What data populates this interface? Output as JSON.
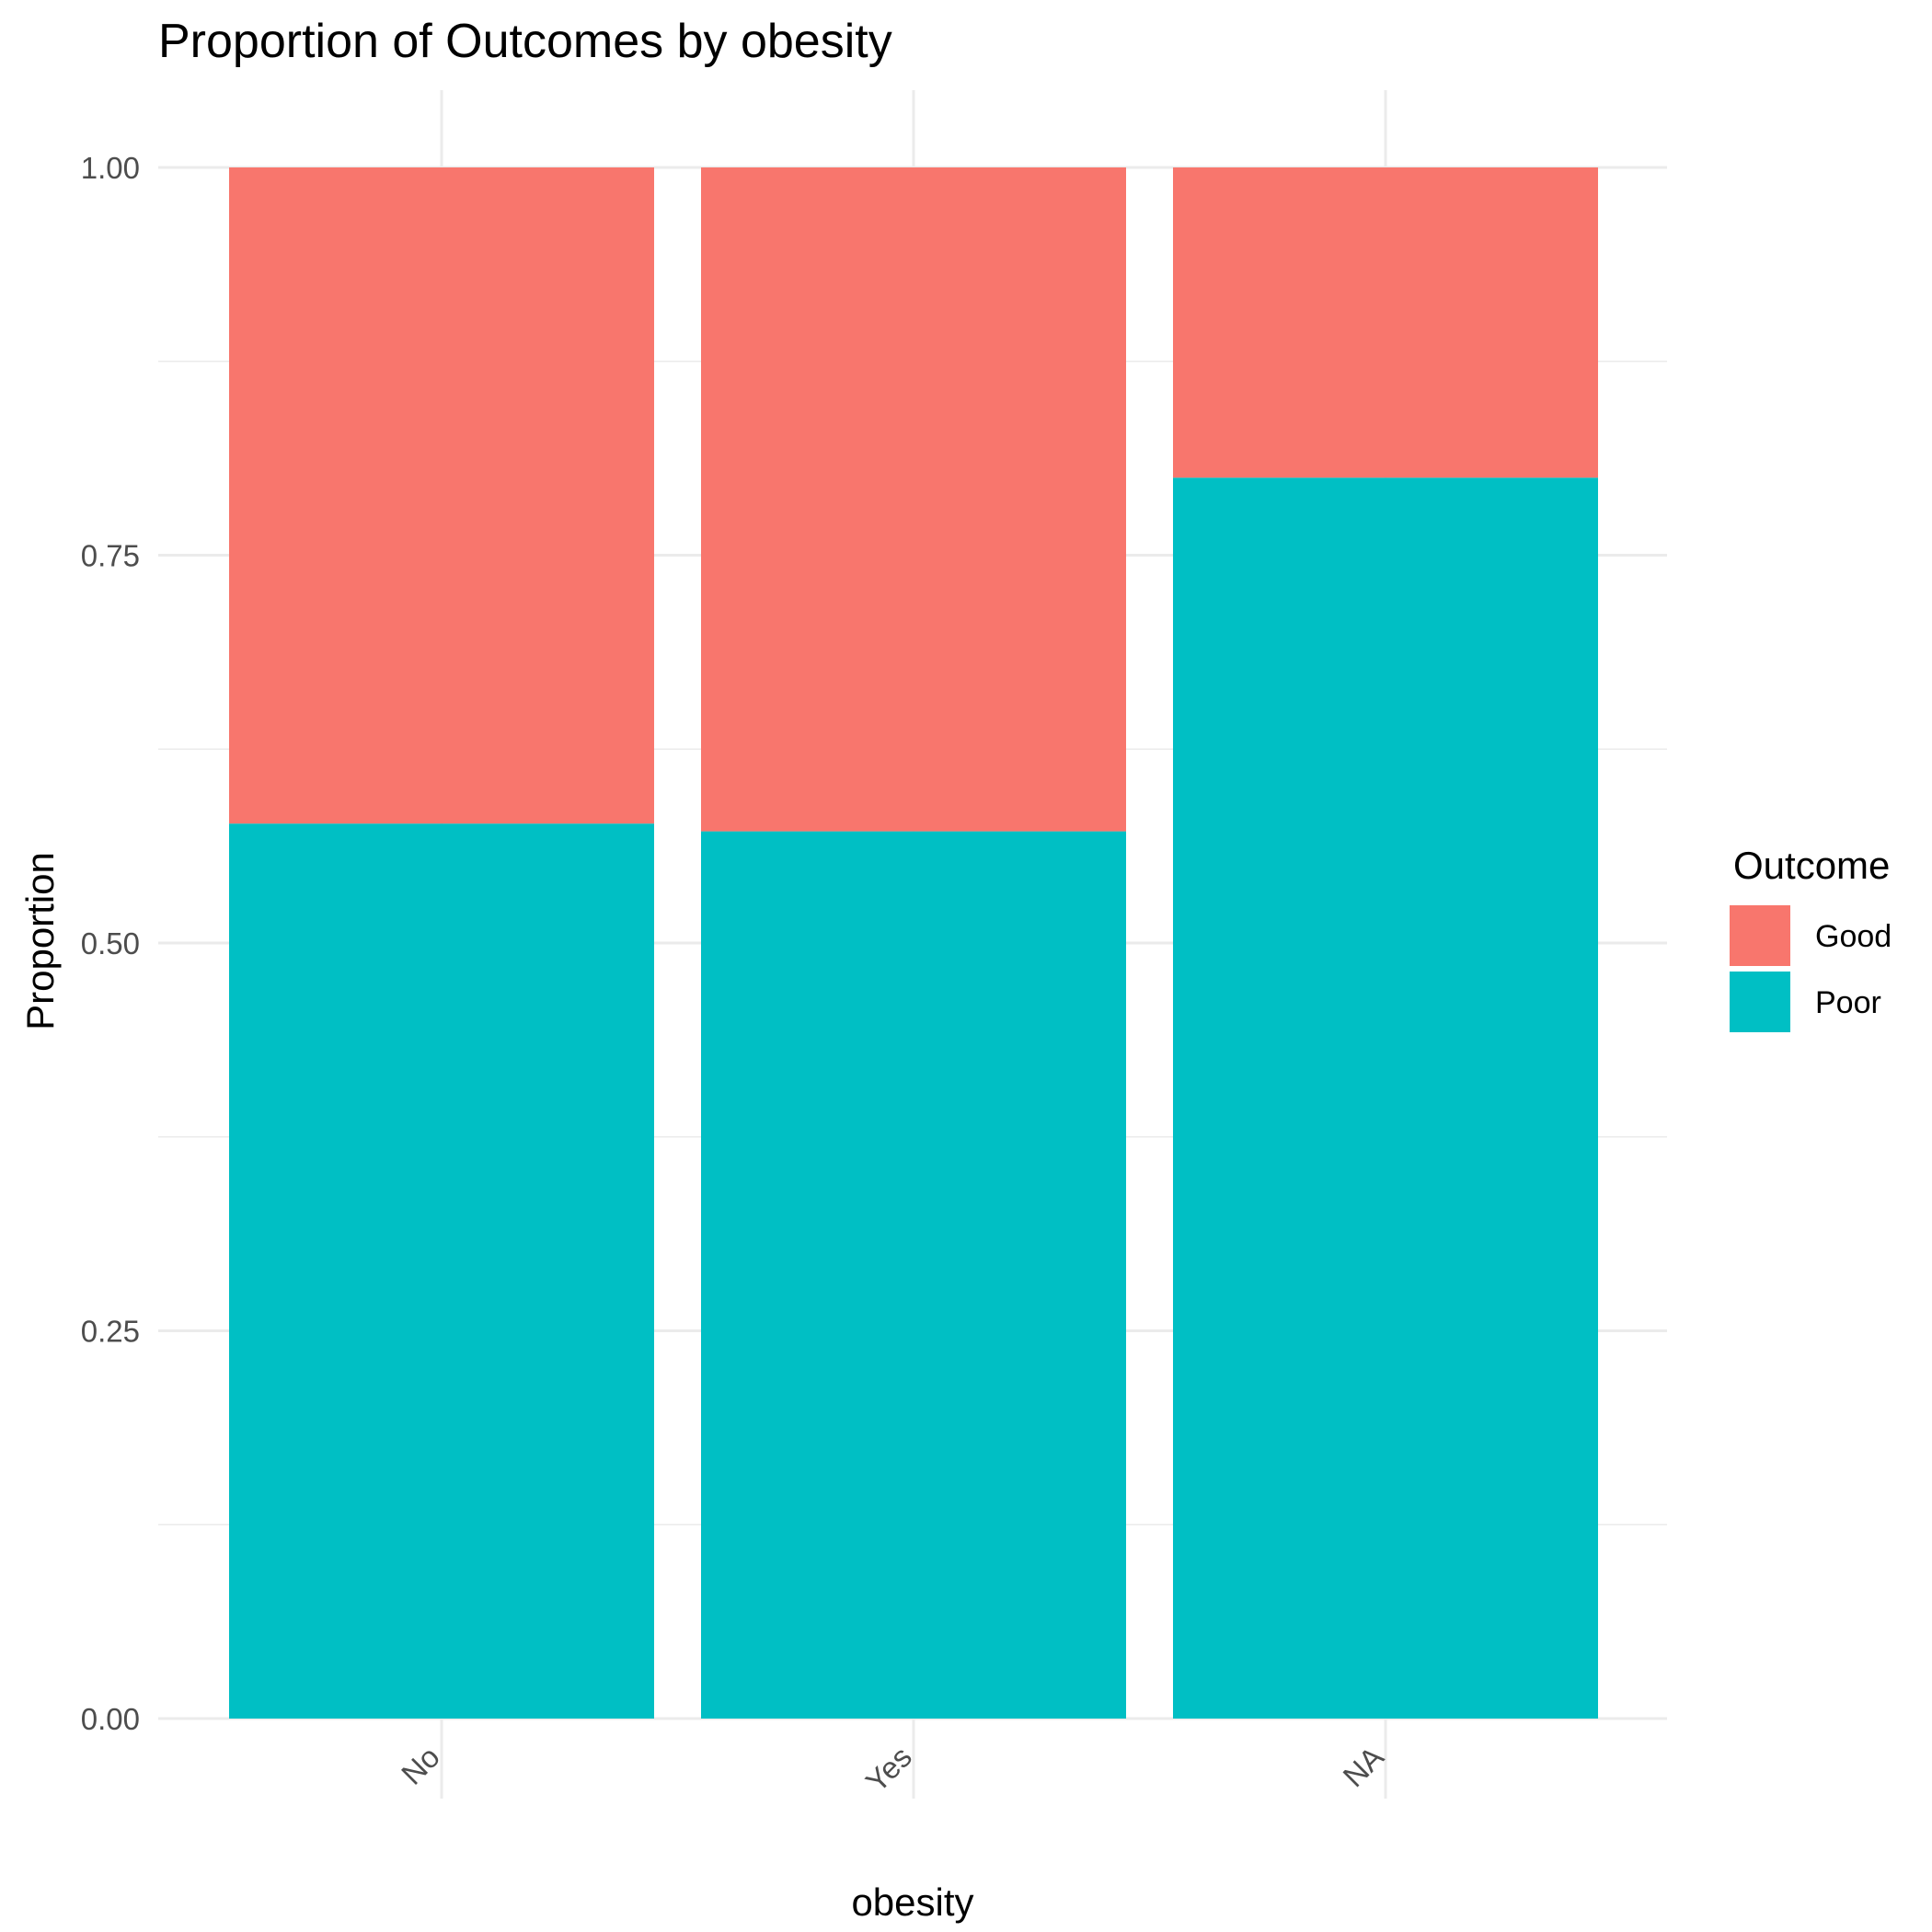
{
  "chart_data": {
    "type": "bar",
    "stacked": true,
    "title": "Proportion of Outcomes by obesity",
    "xlabel": "obesity",
    "ylabel": "Proportion",
    "categories": [
      "No",
      "Yes",
      "NA"
    ],
    "series": [
      {
        "name": "Good",
        "color": "#F8766D",
        "values": [
          0.423,
          0.428,
          0.2
        ]
      },
      {
        "name": "Poor",
        "color": "#00BFC4",
        "values": [
          0.577,
          0.572,
          0.8
        ]
      }
    ],
    "ylim": [
      0,
      1
    ],
    "yticks": [
      "0.00",
      "0.25",
      "0.50",
      "0.75",
      "1.00"
    ],
    "grid": true,
    "legend": {
      "title": "Outcome",
      "position": "right"
    }
  }
}
